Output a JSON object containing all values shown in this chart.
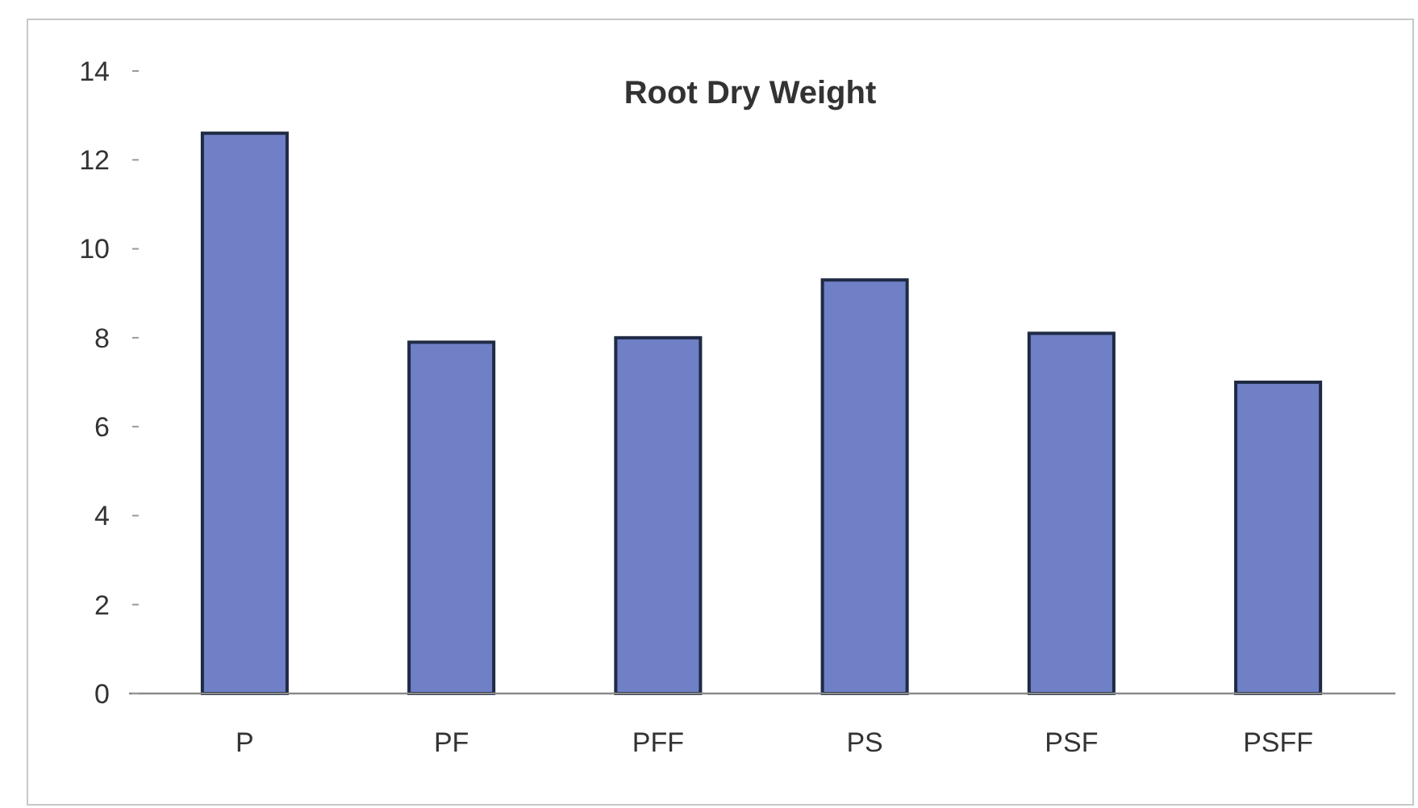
{
  "chart_data": {
    "type": "bar",
    "title": "Root Dry Weight",
    "categories": [
      "P",
      "PF",
      "PFF",
      "PS",
      "PSF",
      "PSFF"
    ],
    "values": [
      12.6,
      7.9,
      8.0,
      9.3,
      8.1,
      7.0
    ],
    "color": "#6f80c6",
    "ylim": [
      0,
      14
    ],
    "yticks": [
      0,
      2,
      4,
      6,
      8,
      10,
      12,
      14
    ]
  }
}
